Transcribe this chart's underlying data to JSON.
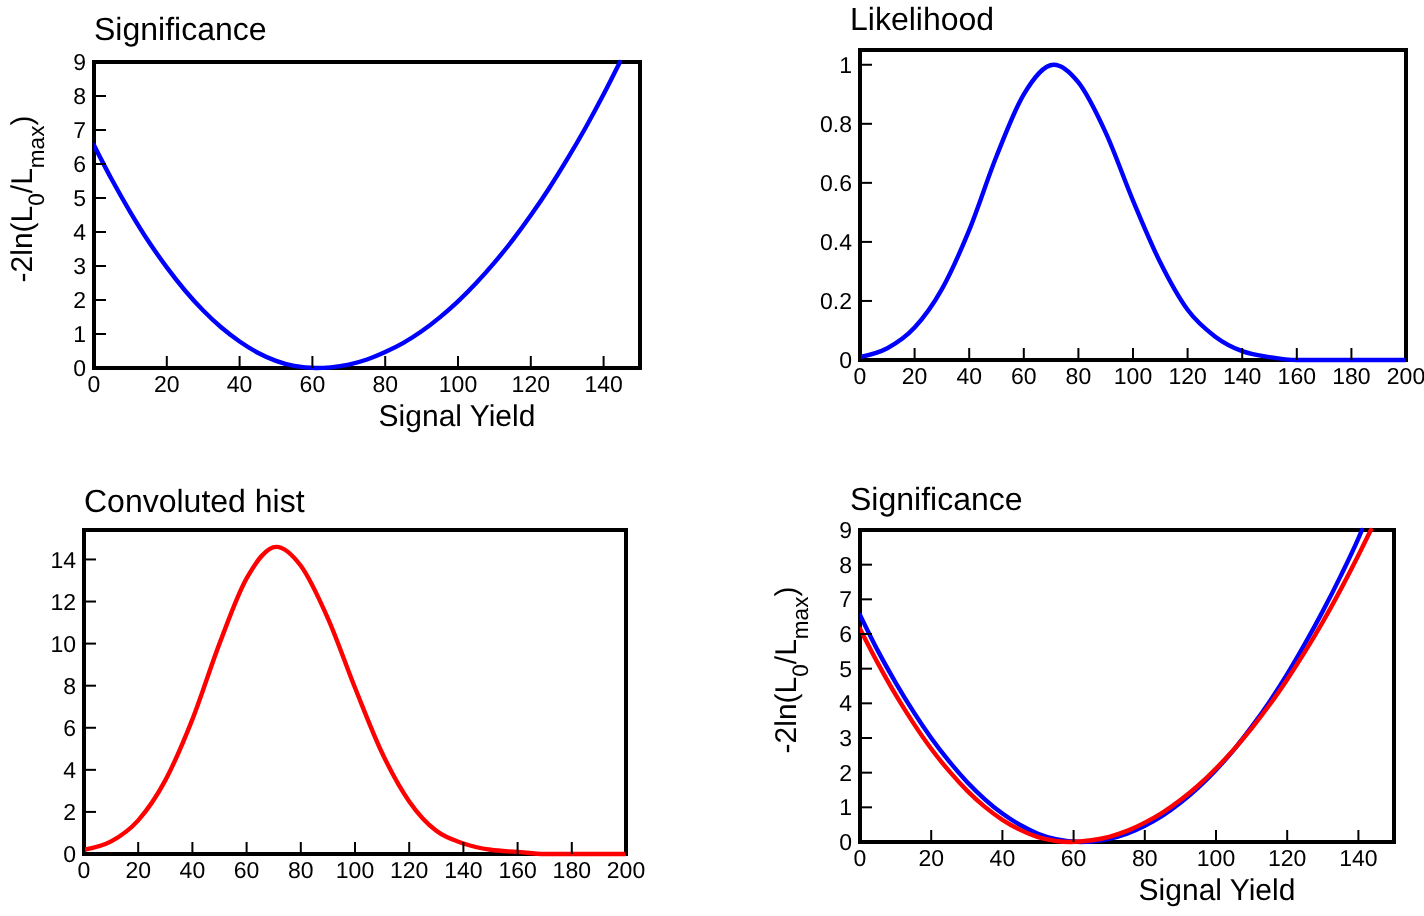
{
  "chart_data": [
    {
      "type": "line",
      "title": "Significance",
      "xlabel": "Signal Yield",
      "ylabel": "-2ln(L$_{0}$/L$_{max}$)",
      "xlim": [
        0,
        150
      ],
      "ylim": [
        0,
        9
      ],
      "xticks": [
        0,
        20,
        40,
        60,
        80,
        100,
        120,
        140
      ],
      "yticks": [
        0,
        1,
        2,
        3,
        4,
        5,
        6,
        7,
        8,
        9
      ],
      "grid": false,
      "marker": "none",
      "line_style": "solid",
      "series": [
        {
          "color": "#0000ff",
          "x": [
            0,
            5,
            10,
            15,
            20,
            25,
            30,
            35,
            40,
            45,
            50,
            55,
            61,
            65,
            70,
            75,
            80,
            85,
            90,
            95,
            100,
            105,
            110,
            115,
            120,
            125,
            130,
            135,
            140,
            144.5
          ],
          "values": [
            6.55,
            5.52,
            4.58,
            3.72,
            2.96,
            2.28,
            1.69,
            1.19,
            0.78,
            0.45,
            0.21,
            0.06,
            0,
            0.02,
            0.1,
            0.25,
            0.47,
            0.74,
            1.08,
            1.49,
            1.96,
            2.5,
            3.1,
            3.76,
            4.49,
            5.28,
            6.14,
            7.06,
            8.05,
            9
          ]
        }
      ]
    },
    {
      "type": "line",
      "title": "Likelihood",
      "xlim": [
        0,
        200
      ],
      "ylim": [
        0,
        1.05
      ],
      "xticks": [
        0,
        20,
        40,
        60,
        80,
        100,
        120,
        140,
        160,
        180,
        200
      ],
      "yticks": [
        0,
        0.2,
        0.4,
        0.6,
        0.8,
        1
      ],
      "grid": false,
      "marker": "none",
      "line_style": "solid",
      "series": [
        {
          "color": "#0000ff",
          "x": [
            0,
            10,
            20,
            30,
            40,
            50,
            60,
            71,
            80,
            90,
            100,
            110,
            120,
            130,
            140,
            150,
            160,
            170,
            180,
            190,
            200
          ],
          "values": [
            0.01,
            0.04,
            0.11,
            0.24,
            0.44,
            0.69,
            0.9,
            1,
            0.94,
            0.77,
            0.54,
            0.33,
            0.17,
            0.08,
            0.03,
            0.01,
            0,
            0,
            0,
            0,
            0
          ]
        }
      ]
    },
    {
      "type": "line",
      "title": "Convoluted hist",
      "xlim": [
        0,
        200
      ],
      "ylim": [
        0,
        15.4
      ],
      "xticks": [
        0,
        20,
        40,
        60,
        80,
        100,
        120,
        140,
        160,
        180,
        200
      ],
      "yticks": [
        0,
        2,
        4,
        6,
        8,
        10,
        12,
        14
      ],
      "grid": false,
      "marker": "none",
      "line_style": "solid",
      "series": [
        {
          "color": "#ff0000",
          "x": [
            0,
            10,
            20,
            30,
            40,
            50,
            60,
            71,
            80,
            90,
            100,
            110,
            120,
            130,
            140,
            150,
            160,
            170,
            180,
            190,
            200
          ],
          "values": [
            0.2,
            0.6,
            1.6,
            3.5,
            6.4,
            10,
            13.1,
            14.6,
            13.7,
            11.2,
            7.9,
            4.8,
            2.5,
            1.1,
            0.5,
            0.2,
            0.1,
            0,
            0,
            0,
            0
          ]
        }
      ]
    },
    {
      "type": "line",
      "title": "Significance",
      "xlabel": "Signal Yield",
      "ylabel": "-2ln(L$_{0}$/L$_{max}$)",
      "xlim": [
        0,
        150
      ],
      "ylim": [
        0,
        9
      ],
      "xticks": [
        0,
        20,
        40,
        60,
        80,
        100,
        120,
        140
      ],
      "yticks": [
        0,
        1,
        2,
        3,
        4,
        5,
        6,
        7,
        8,
        9
      ],
      "grid": false,
      "marker": "none",
      "line_style": "solid",
      "series": [
        {
          "color": "#0000ff",
          "x": [
            0,
            5,
            10,
            15,
            20,
            25,
            30,
            35,
            40,
            45,
            50,
            55,
            62,
            65,
            70,
            75,
            80,
            85,
            90,
            95,
            100,
            105,
            110,
            115,
            120,
            125,
            130,
            135,
            140,
            141
          ],
          "values": [
            6.55,
            5.52,
            4.6,
            3.76,
            3,
            2.33,
            1.74,
            1.24,
            0.82,
            0.49,
            0.24,
            0.08,
            0,
            0.01,
            0.09,
            0.24,
            0.47,
            0.76,
            1.13,
            1.57,
            2.08,
            2.66,
            3.32,
            4.04,
            4.84,
            5.72,
            6.66,
            7.67,
            8.76,
            9
          ]
        },
        {
          "color": "#ff0000",
          "x": [
            0,
            5,
            10,
            15,
            20,
            25,
            30,
            35,
            40,
            45,
            50,
            55,
            59,
            65,
            70,
            75,
            80,
            85,
            90,
            95,
            100,
            105,
            110,
            115,
            120,
            125,
            130,
            135,
            140,
            143.5
          ],
          "values": [
            6.15,
            5.16,
            4.25,
            3.43,
            2.69,
            2.05,
            1.49,
            1.02,
            0.64,
            0.35,
            0.14,
            0.03,
            0,
            0.05,
            0.15,
            0.32,
            0.56,
            0.85,
            1.21,
            1.63,
            2.12,
            2.67,
            3.28,
            3.95,
            4.69,
            5.49,
            6.35,
            7.28,
            8.27,
            9
          ]
        }
      ]
    }
  ]
}
